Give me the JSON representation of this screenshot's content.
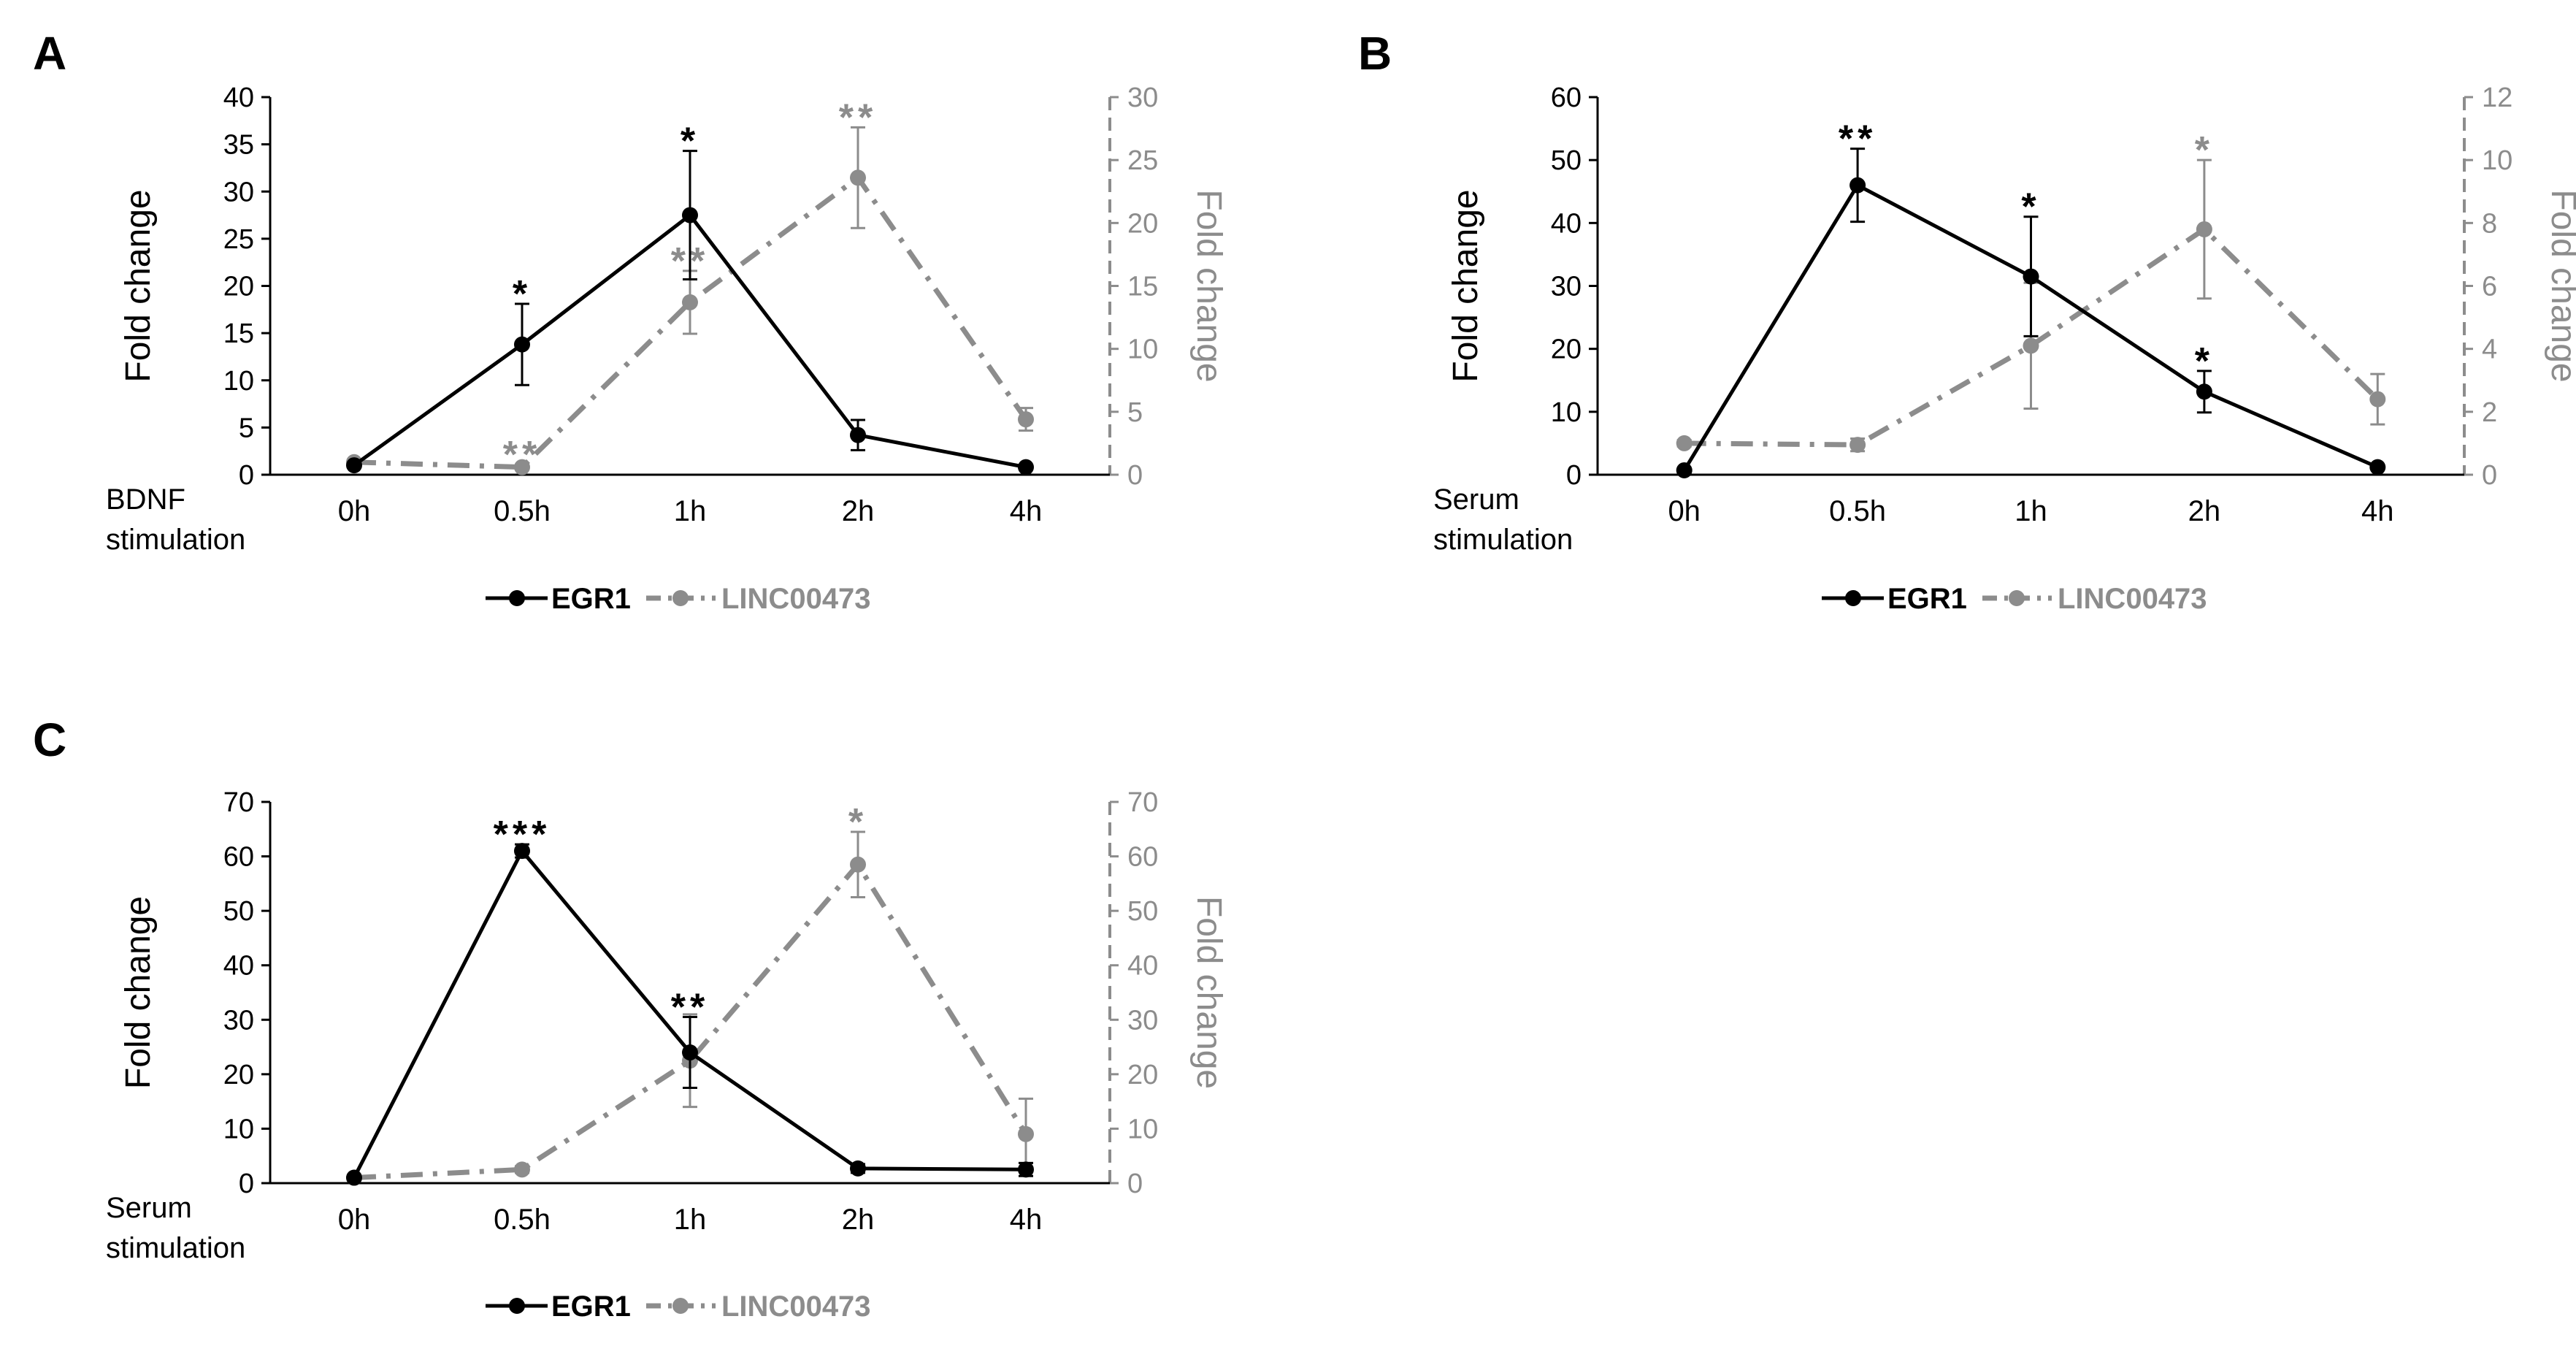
{
  "colors": {
    "egr1": "#000000",
    "linc": "#8c8c8c",
    "axis_left": "#000000",
    "axis_right": "#8c8c8c"
  },
  "chart_data": [
    {
      "panel_letter": "A",
      "type": "line",
      "xlabel": [
        "BDNF",
        "stimulation"
      ],
      "categories": [
        "0h",
        "0.5h",
        "1h",
        "2h",
        "4h"
      ],
      "ylabel_left": "Fold change",
      "ylabel_right": "Fold change",
      "ylim_left": [
        0,
        40
      ],
      "yticks_left": [
        0,
        5,
        10,
        15,
        20,
        25,
        30,
        35,
        40
      ],
      "ylim_right": [
        0,
        30
      ],
      "yticks_right": [
        0,
        5,
        10,
        15,
        20,
        25,
        30
      ],
      "series": [
        {
          "name": "EGR1",
          "axis": "left",
          "values": [
            1,
            13.8,
            27.5,
            4.2,
            0.8
          ],
          "errors": [
            0.2,
            4.3,
            6.8,
            1.6,
            0.2
          ],
          "significance": [
            "",
            "*",
            "*",
            "",
            ""
          ]
        },
        {
          "name": "LINC00473",
          "axis": "right",
          "values": [
            1,
            0.6,
            13.7,
            23.6,
            4.4
          ],
          "errors": [
            0.2,
            0.2,
            2.5,
            4.0,
            0.9
          ],
          "significance": [
            "",
            "**",
            "**",
            "**",
            ""
          ]
        }
      ]
    },
    {
      "panel_letter": "B",
      "type": "line",
      "xlabel": [
        "Serum",
        "stimulation"
      ],
      "categories": [
        "0h",
        "0.5h",
        "1h",
        "2h",
        "4h"
      ],
      "ylabel_left": "Fold change",
      "ylabel_right": "Fold change",
      "ylim_left": [
        0,
        60
      ],
      "yticks_left": [
        0,
        10,
        20,
        30,
        40,
        50,
        60
      ],
      "ylim_right": [
        0,
        12
      ],
      "yticks_right": [
        0,
        2,
        4,
        6,
        8,
        10,
        12
      ],
      "series": [
        {
          "name": "EGR1",
          "axis": "left",
          "values": [
            0.7,
            46,
            31.5,
            13.2,
            1.2
          ],
          "errors": [
            0.2,
            5.8,
            9.5,
            3.3,
            0.3
          ],
          "significance": [
            "",
            "**",
            "*",
            "*",
            ""
          ]
        },
        {
          "name": "LINC00473",
          "axis": "right",
          "values": [
            1,
            0.95,
            4.1,
            7.8,
            2.4
          ],
          "errors": [
            0.1,
            0.2,
            2.0,
            2.2,
            0.8
          ],
          "significance": [
            "",
            "",
            "",
            "*",
            ""
          ]
        }
      ]
    },
    {
      "panel_letter": "C",
      "type": "line",
      "xlabel": [
        "Serum",
        "stimulation"
      ],
      "categories": [
        "0h",
        "0.5h",
        "1h",
        "2h",
        "4h"
      ],
      "ylabel_left": "Fold change",
      "ylabel_right": "Fold change",
      "ylim_left": [
        0,
        70
      ],
      "yticks_left": [
        0,
        10,
        20,
        30,
        40,
        50,
        60,
        70
      ],
      "ylim_right": [
        0,
        70
      ],
      "yticks_right": [
        0,
        10,
        20,
        30,
        40,
        50,
        60,
        70
      ],
      "series": [
        {
          "name": "EGR1",
          "axis": "left",
          "values": [
            1,
            61,
            24,
            2.7,
            2.5
          ],
          "errors": [
            0.2,
            1.2,
            6.5,
            0.8,
            1.2
          ],
          "significance": [
            "",
            "***",
            "**",
            "",
            ""
          ]
        },
        {
          "name": "LINC00473",
          "axis": "right",
          "values": [
            1,
            2.5,
            22.5,
            58.5,
            9
          ],
          "errors": [
            0.2,
            0.6,
            8.5,
            6,
            6.5
          ],
          "significance": [
            "",
            "",
            "",
            "*",
            ""
          ]
        }
      ]
    }
  ]
}
